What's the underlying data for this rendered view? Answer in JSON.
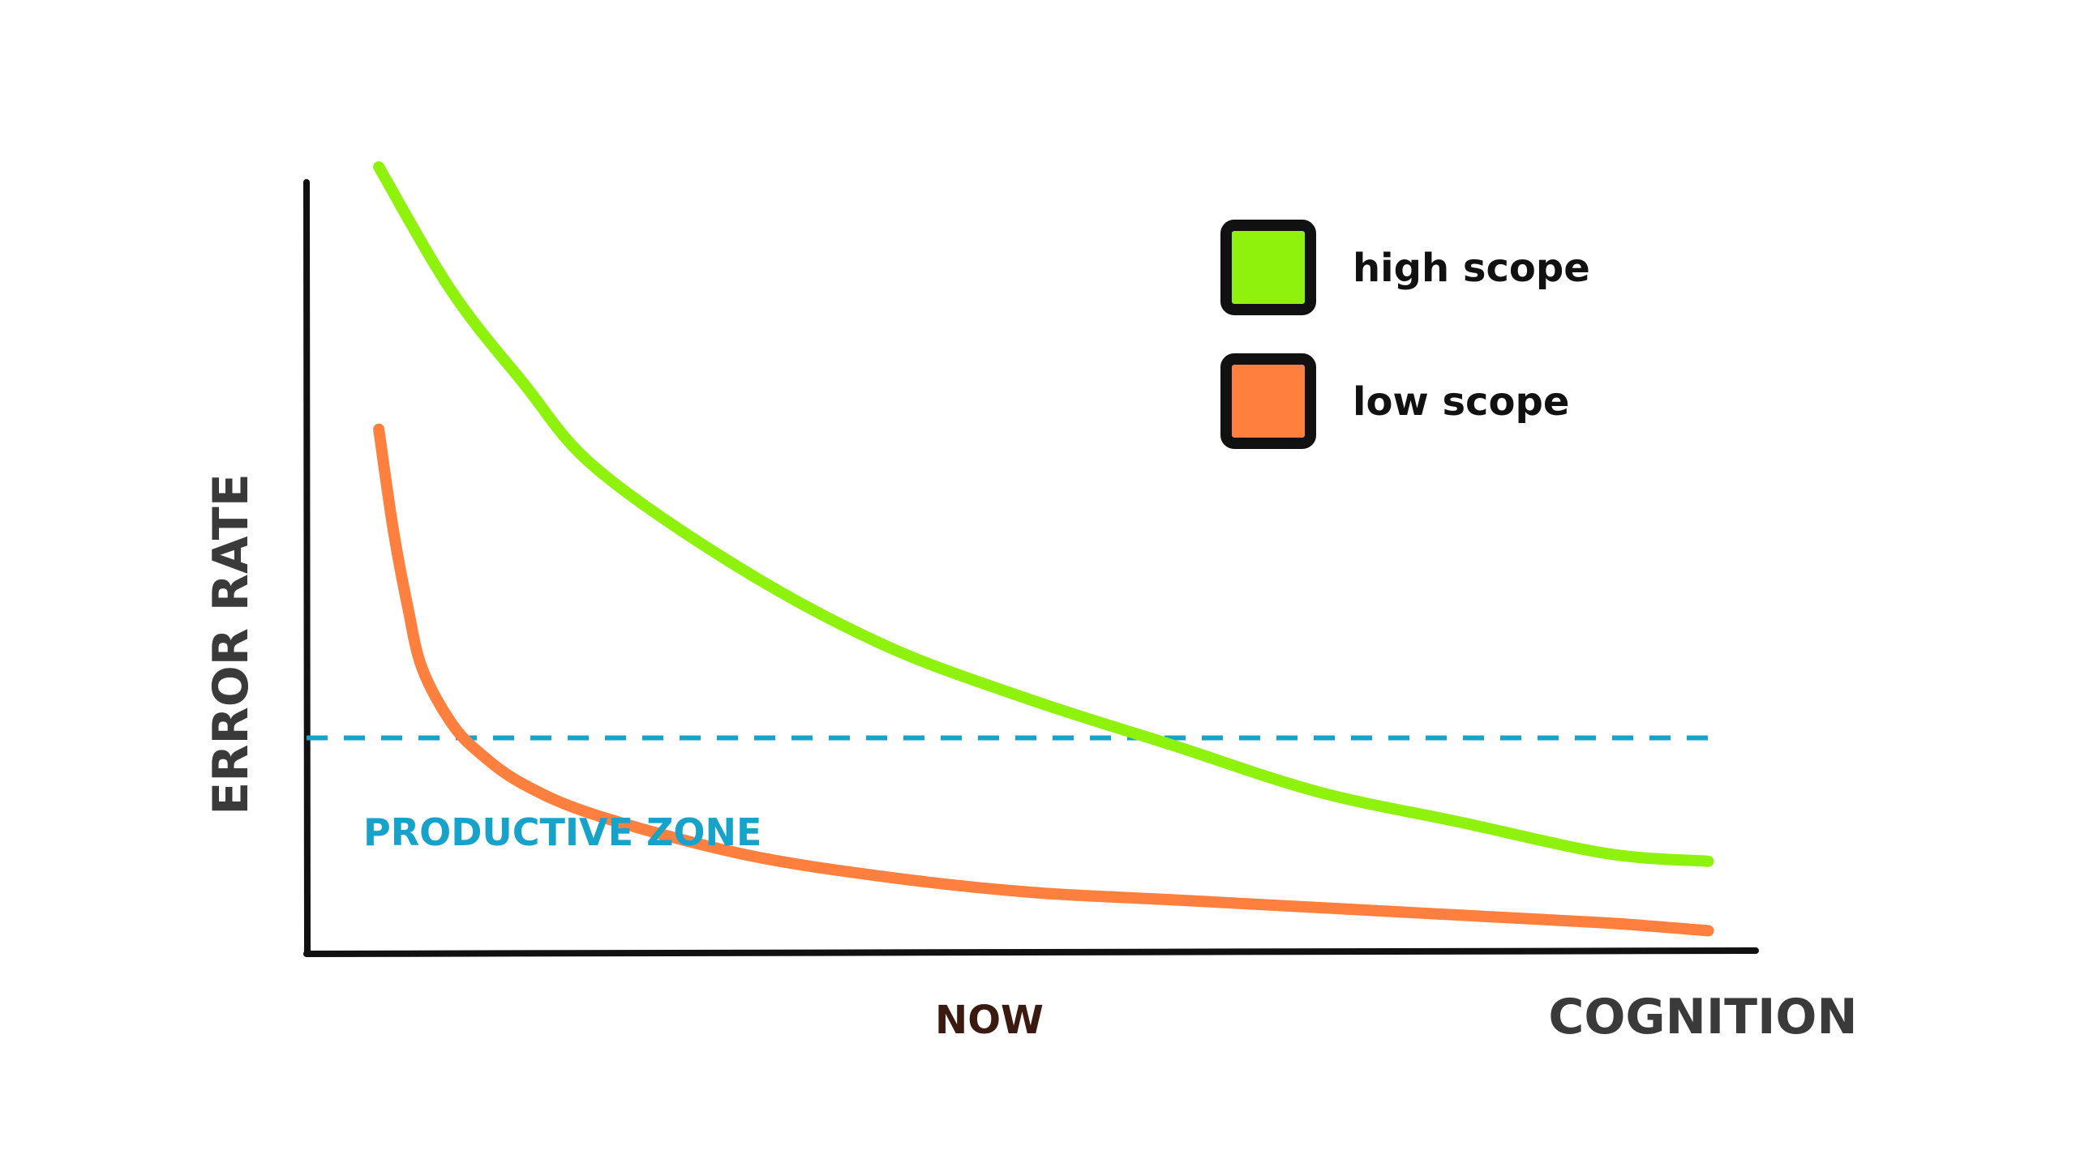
{
  "chart_data": {
    "type": "line",
    "title": "",
    "xlabel": "COGNITION",
    "ylabel": "ERROR RATE",
    "xlim": [
      0,
      100
    ],
    "ylim": [
      0,
      100
    ],
    "grid": false,
    "legend_position": "top-right",
    "series": [
      {
        "name": "high scope",
        "color": "#8ef20c",
        "x": [
          5,
          10,
          15,
          20,
          30,
          40,
          50,
          60,
          70,
          80,
          90,
          97
        ],
        "y": [
          102,
          86,
          74,
          63,
          50,
          40,
          33,
          27,
          21,
          17,
          13,
          12
        ]
      },
      {
        "name": "low scope",
        "color": "#ff7f3f",
        "x": [
          5,
          6,
          7,
          8,
          10,
          12,
          15,
          20,
          30,
          40,
          50,
          60,
          70,
          80,
          90,
          97
        ],
        "y": [
          68,
          55,
          45,
          37,
          30,
          26,
          22,
          18,
          13,
          10,
          8,
          7,
          6,
          5,
          4,
          3
        ]
      }
    ],
    "threshold": {
      "label": "PRODUCTIVE ZONE",
      "y": 28,
      "color": "#17a3c9"
    },
    "markers": [
      {
        "label": "NOW",
        "x": 48,
        "color": "#3b1a12"
      }
    ]
  }
}
